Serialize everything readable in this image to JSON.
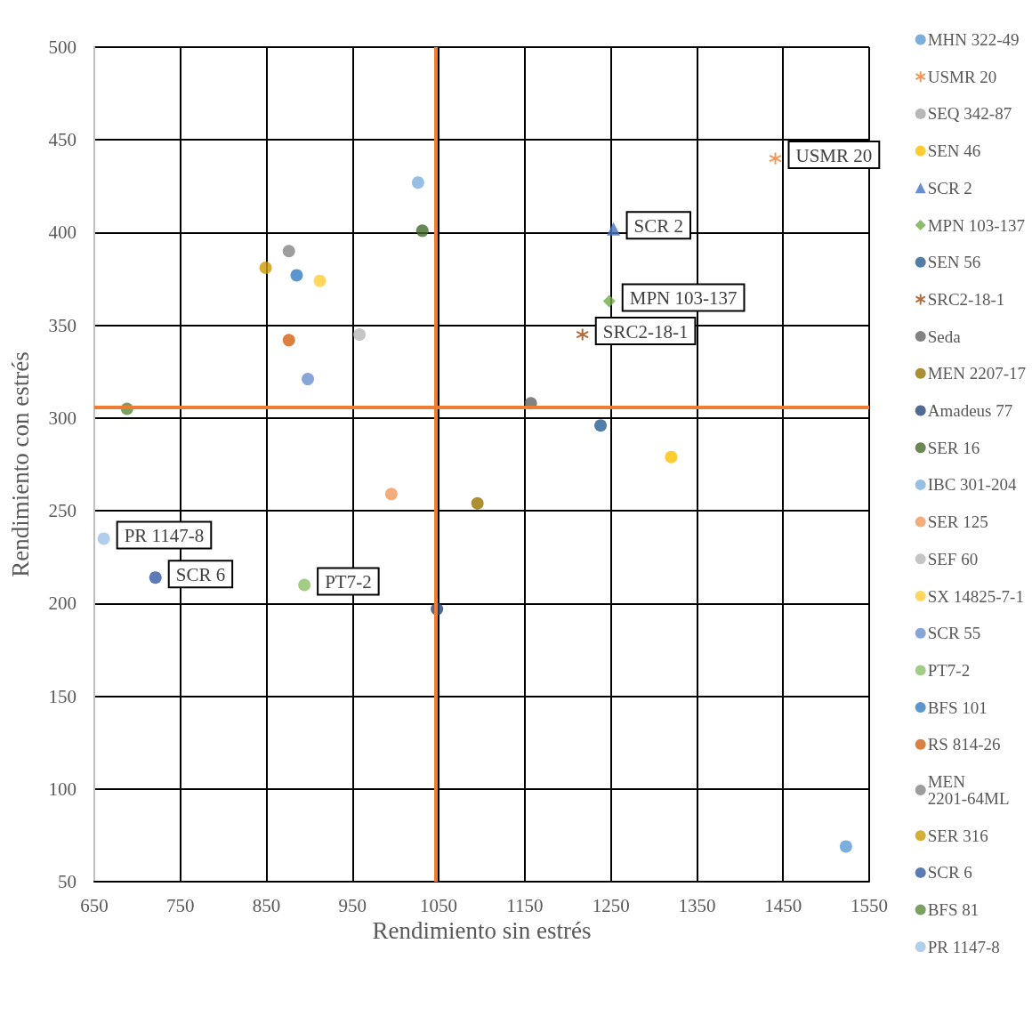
{
  "chart_data": {
    "type": "scatter",
    "xlabel": "Rendimiento sin estrés",
    "ylabel": "Rendimiento con estrés",
    "xlim": [
      650,
      1550
    ],
    "xticks": [
      650,
      750,
      850,
      950,
      1050,
      1150,
      1250,
      1350,
      1450,
      1550
    ],
    "ylim": [
      50,
      500
    ],
    "yticks": [
      50,
      100,
      150,
      200,
      250,
      300,
      350,
      400,
      450,
      500
    ],
    "grid": true,
    "legend": "right",
    "marker": "circle",
    "series": [
      {
        "name": "MHN 322-49",
        "color": "#5b9bd5",
        "x": [
          1523
        ],
        "values": [
          69
        ]
      },
      {
        "name": "USMR 20",
        "color": "#ed7d31",
        "x": [
          1441
        ],
        "values": [
          440
        ],
        "marker": "cross"
      },
      {
        "name": "SEQ 342-87",
        "color": "#a5a5a5",
        "x": [
          null
        ],
        "values": [
          null
        ]
      },
      {
        "name": "SEN 46",
        "color": "#ffc000",
        "x": [
          1320
        ],
        "values": [
          279
        ]
      },
      {
        "name": "SCR 2",
        "color": "#4472c4",
        "x": [
          1253
        ],
        "values": [
          402
        ],
        "marker": "triangle"
      },
      {
        "name": "MPN 103-137",
        "color": "#70ad47",
        "x": [
          1248
        ],
        "values": [
          363
        ],
        "marker": "diamond"
      },
      {
        "name": "SEN 56",
        "color": "#255e91",
        "x": [
          1238
        ],
        "values": [
          296
        ]
      },
      {
        "name": "SRC2-18-1",
        "color": "#9e480e",
        "x": [
          1217
        ],
        "values": [
          345
        ],
        "marker": "cross"
      },
      {
        "name": "Seda",
        "color": "#636363",
        "x": [
          1157
        ],
        "values": [
          308
        ]
      },
      {
        "name": "MEN 2207-17",
        "color": "#997300",
        "x": [
          1095
        ],
        "values": [
          254
        ]
      },
      {
        "name": "Amadeus 77",
        "color": "#264478",
        "x": [
          1048
        ],
        "values": [
          197
        ]
      },
      {
        "name": "SER 16",
        "color": "#43682b",
        "x": [
          1031
        ],
        "values": [
          401
        ]
      },
      {
        "name": "IBC 301-204",
        "color": "#7cafdd",
        "x": [
          1026
        ],
        "values": [
          427
        ]
      },
      {
        "name": "SER 125",
        "color": "#f1975a",
        "x": [
          995
        ],
        "values": [
          259
        ]
      },
      {
        "name": "SEF 60",
        "color": "#b7b7b7",
        "x": [
          958
        ],
        "values": [
          345
        ]
      },
      {
        "name": "SX 14825-7-1",
        "color": "#ffcd33",
        "x": [
          912
        ],
        "values": [
          374
        ]
      },
      {
        "name": "SCR 55",
        "color": "#698ed0",
        "x": [
          898
        ],
        "values": [
          321
        ]
      },
      {
        "name": "PT7-2",
        "color": "#8cc168",
        "x": [
          894
        ],
        "values": [
          210
        ]
      },
      {
        "name": "BFS 101",
        "color": "#327dc2",
        "x": [
          885
        ],
        "values": [
          377
        ]
      },
      {
        "name": "RS 814-26",
        "color": "#d26012",
        "x": [
          876
        ],
        "values": [
          342
        ]
      },
      {
        "name": "MEN 2201-64ML",
        "color": "#848484",
        "x": [
          876
        ],
        "values": [
          390
        ]
      },
      {
        "name": "SER 316",
        "color": "#cc9a00",
        "x": [
          849
        ],
        "values": [
          381
        ]
      },
      {
        "name": "SCR 6",
        "color": "#335aa1",
        "x": [
          721
        ],
        "values": [
          214
        ]
      },
      {
        "name": "BFS 81",
        "color": "#5a8a39",
        "x": [
          688
        ],
        "values": [
          305
        ]
      },
      {
        "name": "PR 1147-8",
        "color": "#9dc3e6",
        "x": [
          661
        ],
        "values": [
          235
        ]
      }
    ],
    "ref_lines": [
      {
        "axis": "x",
        "value": 1047,
        "color": "#ed7d31"
      },
      {
        "axis": "y",
        "value": 306,
        "color": "#ed7d31"
      }
    ],
    "annotations": [
      {
        "text": "USMR 20",
        "x": 1441,
        "y": 440
      },
      {
        "text": "SCR 2",
        "x": 1253,
        "y": 402
      },
      {
        "text": "MPN 103-137",
        "x": 1248,
        "y": 363
      },
      {
        "text": "SRC2-18-1",
        "x": 1217,
        "y": 345
      },
      {
        "text": "PR 1147-8",
        "x": 661,
        "y": 235
      },
      {
        "text": "SCR 6",
        "x": 721,
        "y": 214
      },
      {
        "text": "PT7-2",
        "x": 894,
        "y": 210
      }
    ]
  }
}
